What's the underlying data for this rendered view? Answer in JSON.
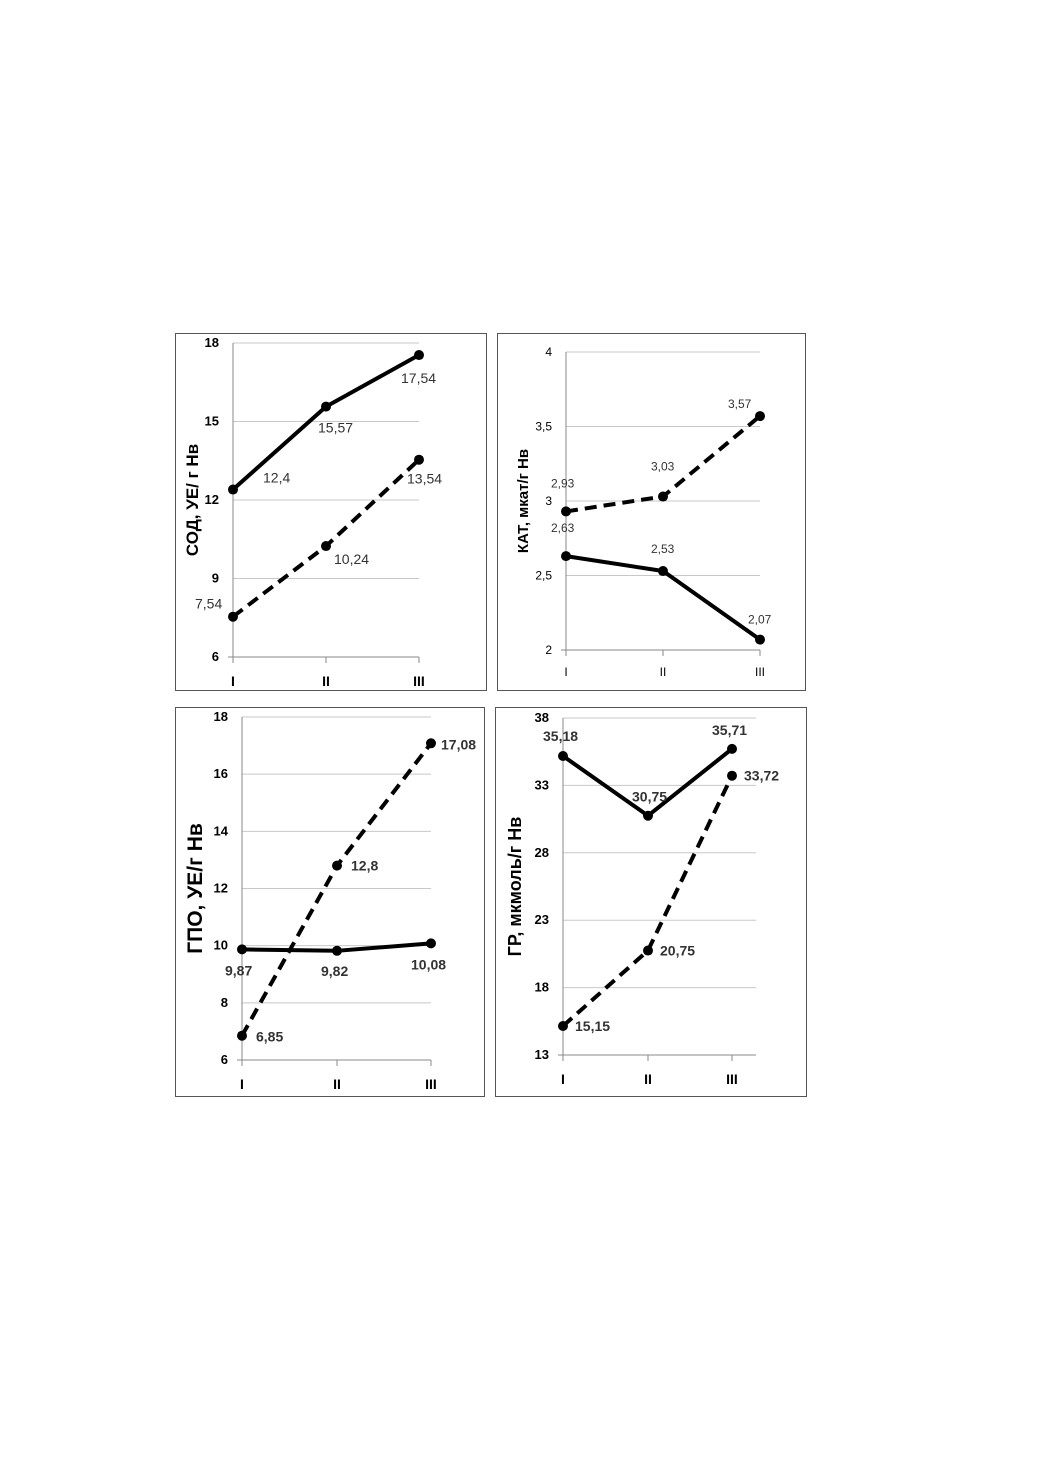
{
  "chart_data": [
    {
      "type": "line",
      "ylabel": "СОД, УЕ/ г Нв",
      "categories": [
        "I",
        "II",
        "III"
      ],
      "yticks": [
        "6",
        "9",
        "12",
        "15",
        "18"
      ],
      "ylim": [
        6,
        18
      ],
      "series": [
        {
          "style": "solid",
          "values": [
            12.4,
            15.57,
            17.54
          ],
          "labels": [
            "12,4",
            "15,57",
            "17,54"
          ]
        },
        {
          "style": "dashed",
          "values": [
            7.54,
            10.24,
            13.54
          ],
          "labels": [
            "7,54",
            "10,24",
            "13,54"
          ]
        }
      ]
    },
    {
      "type": "line",
      "ylabel": "КАТ, мкат/г Нв",
      "categories": [
        "I",
        "II",
        "III"
      ],
      "yticks": [
        "2",
        "2,5",
        "3",
        "3,5",
        "4"
      ],
      "ylim": [
        2,
        4
      ],
      "series": [
        {
          "style": "dashed",
          "values": [
            2.93,
            3.03,
            3.57
          ],
          "labels": [
            "2,93",
            "3,03",
            "3,57"
          ]
        },
        {
          "style": "solid",
          "values": [
            2.63,
            2.53,
            2.07
          ],
          "labels": [
            "2,63",
            "2,53",
            "2,07"
          ]
        }
      ]
    },
    {
      "type": "line",
      "ylabel": "ГПО, УЕ/г Нв",
      "categories": [
        "I",
        "II",
        "III"
      ],
      "yticks": [
        "6",
        "8",
        "10",
        "12",
        "14",
        "16",
        "18"
      ],
      "ylim": [
        6,
        18
      ],
      "series": [
        {
          "style": "dashed",
          "values": [
            6.85,
            12.8,
            17.08
          ],
          "labels": [
            "6,85",
            "12,8",
            "17,08"
          ]
        },
        {
          "style": "solid",
          "values": [
            9.87,
            9.82,
            10.08
          ],
          "labels": [
            "9,87",
            "9,82",
            "10,08"
          ]
        }
      ]
    },
    {
      "type": "line",
      "ylabel": "ГР, мкмоль/г Нв",
      "categories": [
        "I",
        "II",
        "III"
      ],
      "yticks": [
        "13",
        "18",
        "23",
        "28",
        "33",
        "38"
      ],
      "ylim": [
        13,
        38
      ],
      "series": [
        {
          "style": "solid",
          "values": [
            35.18,
            30.75,
            35.71
          ],
          "labels": [
            "35,18",
            "30,75",
            "35,71"
          ]
        },
        {
          "style": "dashed",
          "values": [
            15.15,
            20.75,
            33.72
          ],
          "labels": [
            "15,15",
            "20,75",
            "33,72"
          ]
        }
      ]
    }
  ]
}
